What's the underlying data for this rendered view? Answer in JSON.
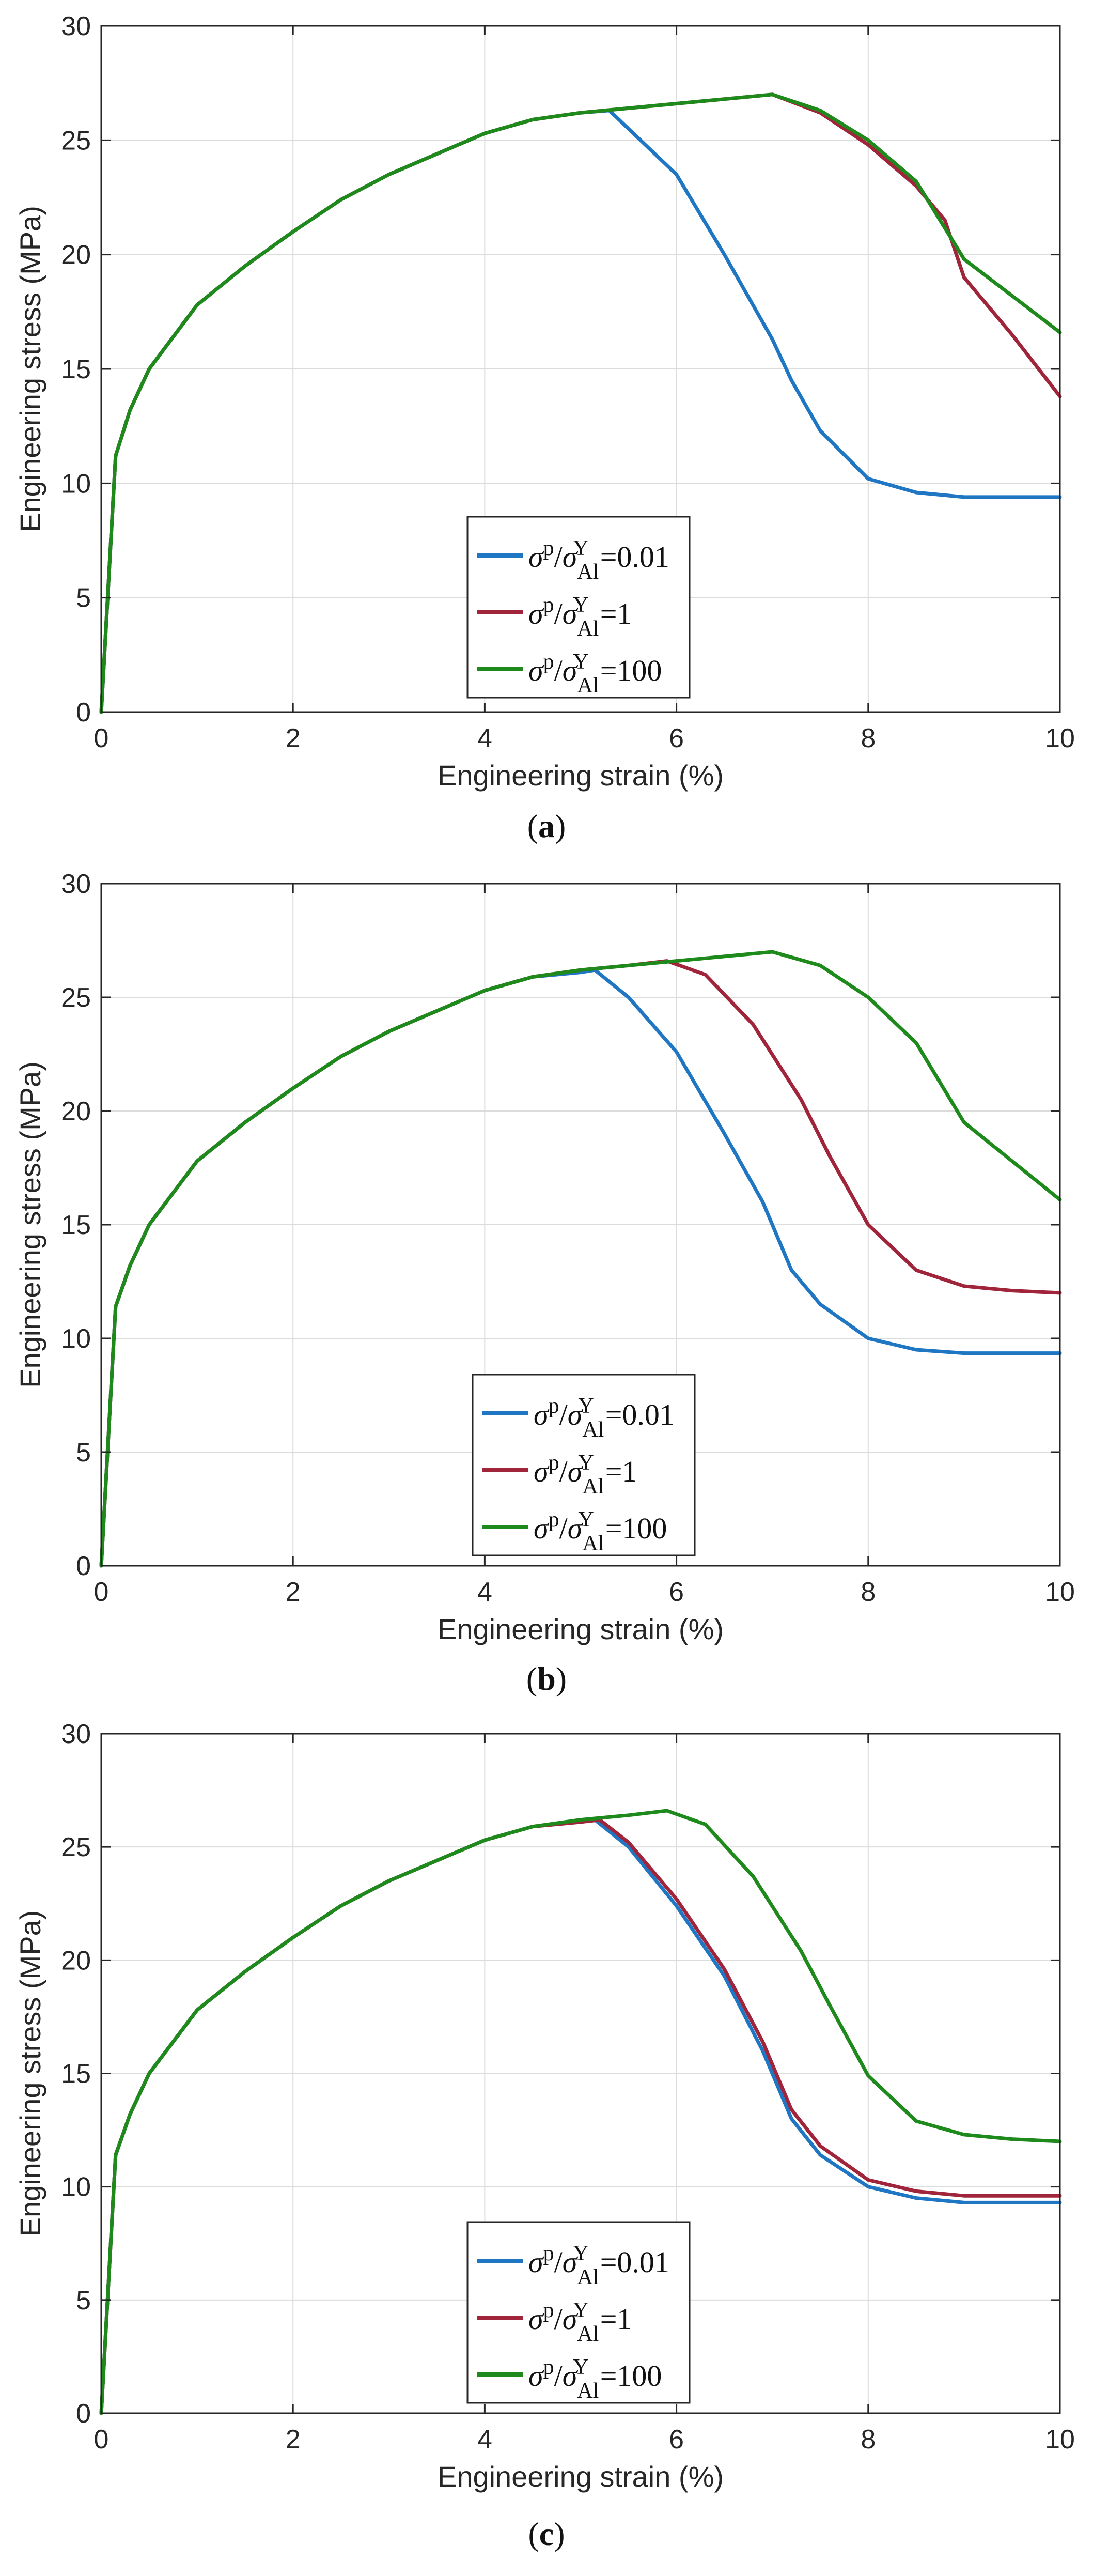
{
  "chart_data": [
    {
      "type": "line",
      "panel": "a",
      "caption": "a",
      "xlabel": "Engineering strain (%)",
      "ylabel": "Engineering stress (MPa)",
      "xlim": [
        0,
        10
      ],
      "ylim": [
        0,
        30
      ],
      "xticks": [
        0,
        2,
        4,
        6,
        8,
        10
      ],
      "yticks": [
        0,
        5,
        10,
        15,
        20,
        25,
        30
      ],
      "grid": true,
      "legend_position": "bottom-center",
      "series": [
        {
          "name": "σp/σYAl=0.01",
          "legend": {
            "sigma": "σ",
            "sup1": "p",
            "sep": "/",
            "sigma2": "σ",
            "sub2": "Al",
            "sup2": "Y",
            "value": "=0.01"
          },
          "color": "#1f77c4",
          "x": [
            0,
            0.15,
            0.3,
            0.5,
            1,
            1.5,
            2,
            2.5,
            3,
            3.5,
            4,
            4.5,
            5,
            5.3,
            5.5,
            6,
            6.5,
            7,
            7.2,
            7.5,
            8,
            8.5,
            9,
            10
          ],
          "y": [
            0,
            11.2,
            13.2,
            15,
            17.8,
            19.5,
            21,
            22.4,
            23.5,
            24.4,
            25.3,
            25.9,
            26.2,
            26.3,
            25.5,
            23.5,
            20,
            16.3,
            14.5,
            12.3,
            10.2,
            9.6,
            9.4,
            9.4
          ]
        },
        {
          "name": "σp/σYAl=1",
          "legend": {
            "sigma": "σ",
            "sup1": "p",
            "sep": "/",
            "sigma2": "σ",
            "sub2": "Al",
            "sup2": "Y",
            "value": "=1"
          },
          "color": "#a0243a",
          "x": [
            0,
            0.15,
            0.3,
            0.5,
            1,
            1.5,
            2,
            2.5,
            3,
            3.5,
            4,
            4.5,
            5,
            5.5,
            6,
            6.5,
            7,
            7.5,
            8,
            8.5,
            8.8,
            9,
            9.5,
            10
          ],
          "y": [
            0,
            11.2,
            13.2,
            15,
            17.8,
            19.5,
            21,
            22.4,
            23.5,
            24.4,
            25.3,
            25.9,
            26.2,
            26.4,
            26.6,
            26.8,
            27,
            26.2,
            24.8,
            23,
            21.5,
            19,
            16.5,
            13.8
          ]
        },
        {
          "name": "σp/σYAl=100",
          "legend": {
            "sigma": "σ",
            "sup1": "p",
            "sep": "/",
            "sigma2": "σ",
            "sub2": "Al",
            "sup2": "Y",
            "value": "=100"
          },
          "color": "#1f8a1c",
          "x": [
            0,
            0.15,
            0.3,
            0.5,
            1,
            1.5,
            2,
            2.5,
            3,
            3.5,
            4,
            4.5,
            5,
            5.5,
            6,
            6.5,
            7,
            7.5,
            8,
            8.5,
            9,
            9.5,
            10
          ],
          "y": [
            0,
            11.2,
            13.2,
            15,
            17.8,
            19.5,
            21,
            22.4,
            23.5,
            24.4,
            25.3,
            25.9,
            26.2,
            26.4,
            26.6,
            26.8,
            27,
            26.3,
            25,
            23.2,
            19.8,
            18.2,
            16.6
          ]
        }
      ]
    },
    {
      "type": "line",
      "panel": "b",
      "caption": "b",
      "xlabel": "Engineering strain (%)",
      "ylabel": "Engineering stress (MPa)",
      "xlim": [
        0,
        10
      ],
      "ylim": [
        0,
        30
      ],
      "xticks": [
        0,
        2,
        4,
        6,
        8,
        10
      ],
      "yticks": [
        0,
        5,
        10,
        15,
        20,
        25,
        30
      ],
      "grid": true,
      "legend_position": "bottom-center",
      "series": [
        {
          "name": "σp/σYAl=0.01",
          "legend": {
            "sigma": "σ",
            "sup1": "p",
            "sep": "/",
            "sigma2": "σ",
            "sub2": "Al",
            "sup2": "Y",
            "value": "=0.01"
          },
          "color": "#1f77c4",
          "x": [
            0,
            0.15,
            0.3,
            0.5,
            1,
            1.5,
            2,
            2.5,
            3,
            3.5,
            4,
            4.5,
            5,
            5.15,
            5.5,
            6,
            6.5,
            6.9,
            7.2,
            7.5,
            8,
            8.5,
            9,
            10
          ],
          "y": [
            0,
            11.4,
            13.2,
            15,
            17.8,
            19.5,
            21,
            22.4,
            23.5,
            24.4,
            25.3,
            25.9,
            26.1,
            26.2,
            25,
            22.6,
            19,
            16,
            13,
            11.5,
            10,
            9.5,
            9.35,
            9.35
          ]
        },
        {
          "name": "σp/σYAl=1",
          "legend": {
            "sigma": "σ",
            "sup1": "p",
            "sep": "/",
            "sigma2": "σ",
            "sub2": "Al",
            "sup2": "Y",
            "value": "=1"
          },
          "color": "#a0243a",
          "x": [
            0,
            0.15,
            0.3,
            0.5,
            1,
            1.5,
            2,
            2.5,
            3,
            3.5,
            4,
            4.5,
            5,
            5.5,
            5.9,
            6.3,
            6.8,
            7.3,
            7.6,
            8,
            8.5,
            9,
            9.5,
            10
          ],
          "y": [
            0,
            11.4,
            13.2,
            15,
            17.8,
            19.5,
            21,
            22.4,
            23.5,
            24.4,
            25.3,
            25.9,
            26.2,
            26.4,
            26.6,
            26,
            23.8,
            20.5,
            18,
            15,
            13,
            12.3,
            12.1,
            12
          ]
        },
        {
          "name": "σp/σYAl=100",
          "legend": {
            "sigma": "σ",
            "sup1": "p",
            "sep": "/",
            "sigma2": "σ",
            "sub2": "Al",
            "sup2": "Y",
            "value": "=100"
          },
          "color": "#1f8a1c",
          "x": [
            0,
            0.15,
            0.3,
            0.5,
            1,
            1.5,
            2,
            2.5,
            3,
            3.5,
            4,
            4.5,
            5,
            5.5,
            6,
            6.5,
            7,
            7.5,
            8,
            8.5,
            9,
            9.5,
            10
          ],
          "y": [
            0,
            11.4,
            13.2,
            15,
            17.8,
            19.5,
            21,
            22.4,
            23.5,
            24.4,
            25.3,
            25.9,
            26.2,
            26.4,
            26.6,
            26.8,
            27,
            26.4,
            25,
            23,
            19.5,
            17.8,
            16.1
          ]
        }
      ]
    },
    {
      "type": "line",
      "panel": "c",
      "caption": "c",
      "xlabel": "Engineering strain (%)",
      "ylabel": "Engineering stress (MPa)",
      "xlim": [
        0,
        10
      ],
      "ylim": [
        0,
        30
      ],
      "xticks": [
        0,
        2,
        4,
        6,
        8,
        10
      ],
      "yticks": [
        0,
        5,
        10,
        15,
        20,
        25,
        30
      ],
      "grid": true,
      "legend_position": "bottom-center",
      "series": [
        {
          "name": "σp/σYAl=0.01",
          "legend": {
            "sigma": "σ",
            "sup1": "p",
            "sep": "/",
            "sigma2": "σ",
            "sub2": "Al",
            "sup2": "Y",
            "value": "=0.01"
          },
          "color": "#1f77c4",
          "x": [
            0,
            0.15,
            0.3,
            0.5,
            1,
            1.5,
            2,
            2.5,
            3,
            3.5,
            4,
            4.5,
            5,
            5.15,
            5.5,
            6,
            6.5,
            6.9,
            7.2,
            7.5,
            8,
            8.5,
            9,
            10
          ],
          "y": [
            0,
            11.4,
            13.2,
            15,
            17.8,
            19.5,
            21,
            22.4,
            23.5,
            24.4,
            25.3,
            25.9,
            26.1,
            26.2,
            25,
            22.4,
            19.3,
            16,
            13,
            11.4,
            10,
            9.5,
            9.3,
            9.3
          ]
        },
        {
          "name": "σp/σYAl=1",
          "legend": {
            "sigma": "σ",
            "sup1": "p",
            "sep": "/",
            "sigma2": "σ",
            "sub2": "Al",
            "sup2": "Y",
            "value": "=1"
          },
          "color": "#a0243a",
          "x": [
            0,
            0.15,
            0.3,
            0.5,
            1,
            1.5,
            2,
            2.5,
            3,
            3.5,
            4,
            4.5,
            5,
            5.2,
            5.5,
            6,
            6.5,
            6.9,
            7.2,
            7.5,
            8,
            8.5,
            9,
            10
          ],
          "y": [
            0,
            11.4,
            13.2,
            15,
            17.8,
            19.5,
            21,
            22.4,
            23.5,
            24.4,
            25.3,
            25.9,
            26.1,
            26.2,
            25.2,
            22.7,
            19.6,
            16.4,
            13.4,
            11.8,
            10.3,
            9.8,
            9.6,
            9.6
          ]
        },
        {
          "name": "σp/σYAl=100",
          "legend": {
            "sigma": "σ",
            "sup1": "p",
            "sep": "/",
            "sigma2": "σ",
            "sub2": "Al",
            "sup2": "Y",
            "value": "=100"
          },
          "color": "#1f8a1c",
          "x": [
            0,
            0.15,
            0.3,
            0.5,
            1,
            1.5,
            2,
            2.5,
            3,
            3.5,
            4,
            4.5,
            5,
            5.5,
            5.9,
            6.3,
            6.8,
            7.3,
            7.6,
            8,
            8.5,
            9,
            9.5,
            10
          ],
          "y": [
            0,
            11.4,
            13.2,
            15,
            17.8,
            19.5,
            21,
            22.4,
            23.5,
            24.4,
            25.3,
            25.9,
            26.2,
            26.4,
            26.6,
            26,
            23.7,
            20.4,
            18,
            14.9,
            12.9,
            12.3,
            12.1,
            12
          ]
        }
      ]
    }
  ]
}
